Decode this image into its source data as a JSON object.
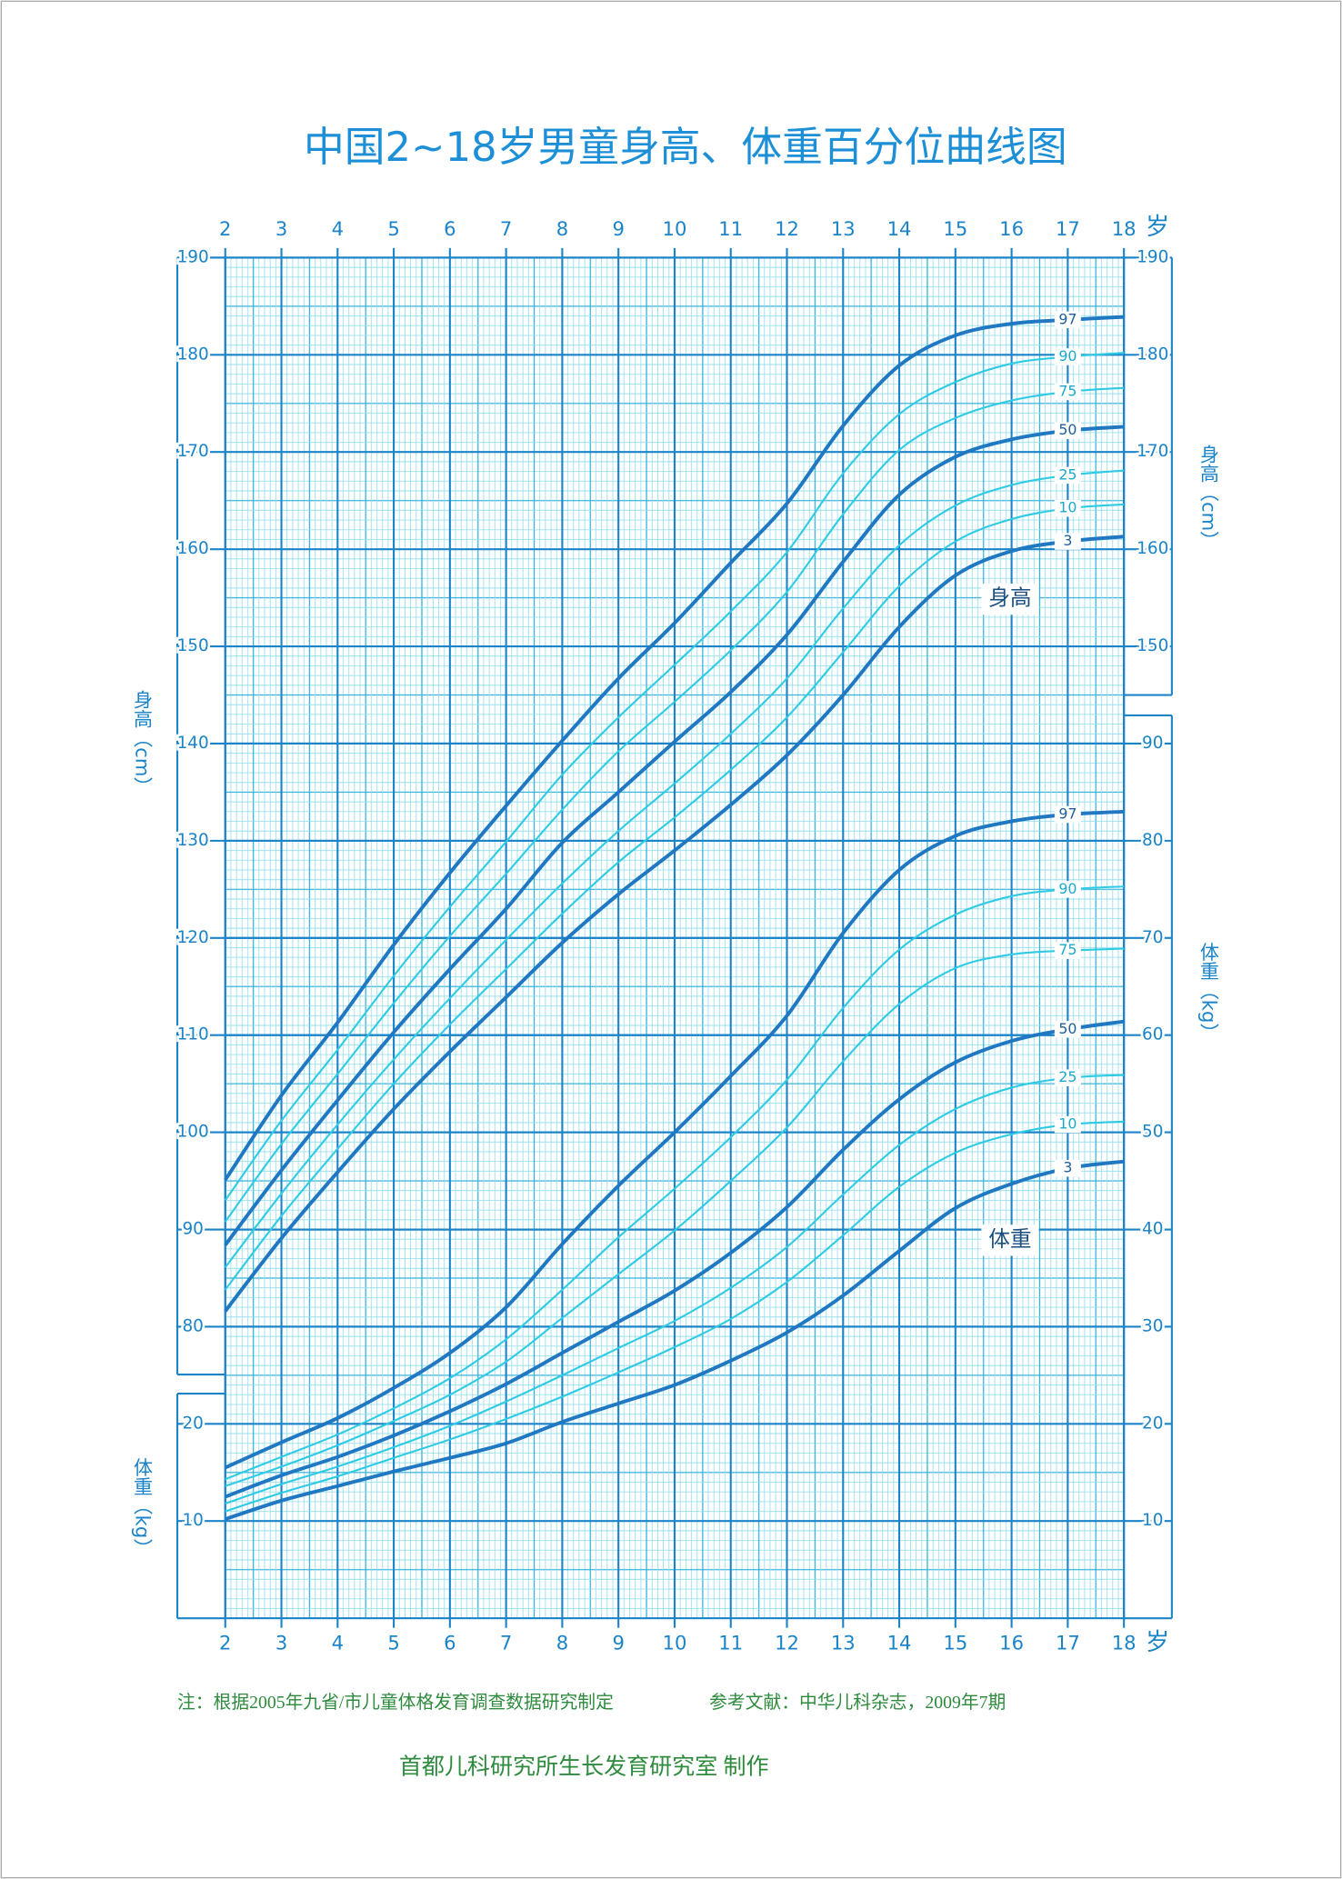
{
  "chart_data": {
    "type": "line",
    "title": "中国2~18岁男童身高、体重百分位曲线图",
    "x_label": "岁",
    "y_label": "身高（cm）",
    "y2_label": "体重（kg）",
    "annotations": [
      "身高",
      "体重"
    ],
    "x": [
      2,
      3,
      4,
      5,
      6,
      7,
      8,
      9,
      10,
      11,
      12,
      13,
      14,
      15,
      16,
      17,
      18
    ],
    "xlim": [
      2,
      18
    ],
    "xticks": [
      2,
      3,
      4,
      5,
      6,
      7,
      8,
      9,
      10,
      11,
      12,
      13,
      14,
      15,
      16,
      17,
      18
    ],
    "ylim": [
      50,
      190
    ],
    "yticks": [
      80,
      90,
      100,
      110,
      120,
      130,
      140,
      150,
      160,
      170,
      180,
      190
    ],
    "yticks_right": [
      150,
      160,
      170,
      180,
      190
    ],
    "y2lim": [
      0,
      140
    ],
    "y2ticks": [
      10,
      20,
      30,
      40,
      50,
      60,
      70,
      80,
      90
    ],
    "y2ticks_left": [
      10,
      20
    ],
    "grid": true,
    "series": [
      {
        "name": "97",
        "color": "#1f78c1",
        "style": "bold",
        "values": [
          95.1,
          103.8,
          111.3,
          119.3,
          126.7,
          133.6,
          140.3,
          146.7,
          152.4,
          158.6,
          164.7,
          172.7,
          178.9,
          182.0,
          183.2,
          183.6,
          183.9
        ]
      },
      {
        "name": "90",
        "color": "#2fcbe4",
        "style": "thin",
        "values": [
          93.0,
          101.2,
          108.5,
          116.1,
          123.2,
          129.9,
          136.8,
          142.7,
          148.1,
          153.6,
          159.7,
          167.8,
          173.9,
          177.2,
          179.1,
          179.8,
          180.2
        ]
      },
      {
        "name": "75",
        "color": "#2fcbe4",
        "style": "thin",
        "values": [
          90.8,
          98.8,
          106.0,
          113.3,
          120.2,
          126.6,
          133.2,
          139.2,
          144.3,
          149.6,
          155.6,
          163.6,
          170.2,
          173.5,
          175.3,
          176.2,
          176.6
        ]
      },
      {
        "name": "50",
        "color": "#1f78c1",
        "style": "bold",
        "values": [
          88.4,
          96.1,
          103.3,
          110.3,
          116.8,
          123.0,
          129.8,
          135.0,
          140.2,
          145.3,
          151.2,
          158.7,
          165.6,
          169.5,
          171.3,
          172.2,
          172.6
        ]
      },
      {
        "name": "25",
        "color": "#2fcbe4",
        "style": "thin",
        "values": [
          86.1,
          93.7,
          100.8,
          107.5,
          113.8,
          119.8,
          125.6,
          131.0,
          135.9,
          141.0,
          146.7,
          153.9,
          160.4,
          164.5,
          166.6,
          167.6,
          168.1
        ]
      },
      {
        "name": "10",
        "color": "#2fcbe4",
        "style": "thin",
        "values": [
          83.8,
          91.4,
          98.3,
          105.0,
          111.1,
          116.8,
          122.5,
          127.8,
          132.4,
          137.3,
          142.7,
          149.4,
          156.2,
          160.8,
          163.1,
          164.2,
          164.6
        ]
      },
      {
        "name": "3",
        "color": "#1f78c1",
        "style": "bold",
        "values": [
          81.6,
          89.1,
          95.9,
          102.4,
          108.3,
          113.9,
          119.5,
          124.5,
          129.0,
          133.7,
          138.8,
          145.0,
          152.0,
          157.3,
          159.8,
          160.8,
          161.3
        ]
      },
      {
        "name": "97",
        "color": "#1f78c1",
        "style": "bold",
        "axis": "y2",
        "values": [
          15.5,
          18.1,
          20.6,
          23.7,
          27.3,
          32.0,
          38.5,
          44.5,
          50.0,
          55.8,
          62.0,
          70.5,
          77.0,
          80.5,
          82.0,
          82.7,
          83.0
        ]
      },
      {
        "name": "90",
        "color": "#2fcbe4",
        "style": "thin",
        "axis": "y2",
        "values": [
          14.3,
          16.6,
          18.9,
          21.6,
          24.7,
          28.7,
          33.8,
          39.2,
          44.2,
          49.5,
          55.4,
          62.8,
          68.8,
          72.4,
          74.3,
          75.0,
          75.3
        ]
      },
      {
        "name": "75",
        "color": "#2fcbe4",
        "style": "thin",
        "axis": "y2",
        "values": [
          13.6,
          15.6,
          17.8,
          20.3,
          23.0,
          26.4,
          30.9,
          35.4,
          39.9,
          45.0,
          50.5,
          57.3,
          63.2,
          66.9,
          68.3,
          68.7,
          68.9
        ]
      },
      {
        "name": "50",
        "color": "#1f78c1",
        "style": "bold",
        "axis": "y2",
        "values": [
          12.5,
          14.7,
          16.6,
          18.8,
          21.3,
          24.1,
          27.3,
          30.5,
          33.7,
          37.6,
          42.3,
          48.2,
          53.4,
          57.2,
          59.4,
          60.6,
          61.4
        ]
      },
      {
        "name": "25",
        "color": "#2fcbe4",
        "style": "thin",
        "axis": "y2",
        "values": [
          11.8,
          13.8,
          15.6,
          17.6,
          19.8,
          22.3,
          25.0,
          27.8,
          30.6,
          34.0,
          38.2,
          43.6,
          48.7,
          52.4,
          54.6,
          55.6,
          55.9
        ]
      },
      {
        "name": "10",
        "color": "#2fcbe4",
        "style": "thin",
        "axis": "y2",
        "values": [
          11.0,
          12.9,
          14.6,
          16.5,
          18.4,
          20.5,
          22.8,
          25.3,
          27.9,
          30.8,
          34.6,
          39.4,
          44.4,
          47.9,
          49.8,
          50.8,
          51.1
        ]
      },
      {
        "name": "3",
        "color": "#1f78c1",
        "style": "bold",
        "axis": "y2",
        "values": [
          10.2,
          12.1,
          13.6,
          15.1,
          16.5,
          18.0,
          20.2,
          22.1,
          24.0,
          26.5,
          29.4,
          33.2,
          37.8,
          42.2,
          44.7,
          46.3,
          47.0
        ]
      }
    ]
  },
  "footer": {
    "note": "注：根据2005年九省/市儿童体格发育调查数据研究制定",
    "reference": "参考文献：中华儿科杂志，2009年7期",
    "credit": "首都儿科研究所生长发育研究室 制作"
  }
}
